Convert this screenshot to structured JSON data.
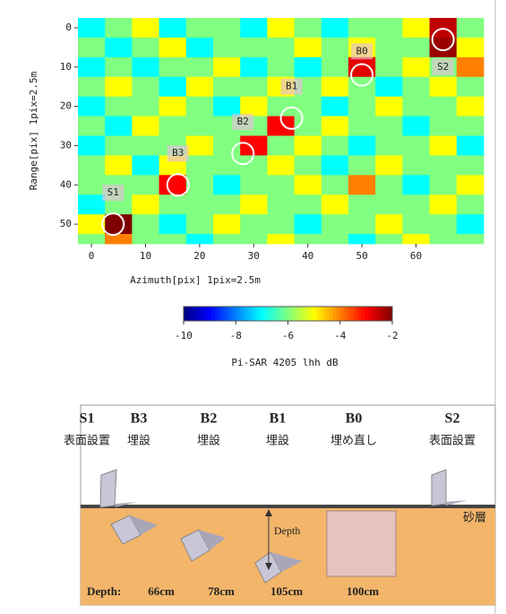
{
  "chart_data": {
    "type": "heatmap",
    "xlabel": "Azimuth[pix] 1pix=2.5m",
    "ylabel": "Range[pix] 1pix=2.5m",
    "xlim": [
      -2.5,
      72.5
    ],
    "ylim": [
      -2.5,
      55
    ],
    "xticks": [
      0,
      10,
      20,
      30,
      40,
      50,
      60
    ],
    "yticks": [
      0,
      10,
      20,
      30,
      40,
      50
    ],
    "y_inverted": true,
    "xbins": [
      -2.5,
      2.5,
      7.5,
      12.5,
      17.5,
      22.5,
      27.5,
      32.5,
      37.5,
      42.5,
      47.5,
      52.5,
      57.5,
      62.5,
      67.5,
      72.5
    ],
    "ybins": [
      -2.5,
      2.5,
      7.5,
      12.5,
      17.5,
      22.5,
      27.5,
      32.5,
      37.5,
      42.5,
      47.5,
      52.5,
      55
    ],
    "values": [
      [
        -7,
        -6,
        -5,
        -7,
        -6,
        -6,
        -7,
        -5,
        -6,
        -7,
        -6,
        -6,
        -5,
        -2.5,
        -6
      ],
      [
        -6,
        -7,
        -6,
        -5,
        -7,
        -6,
        -6,
        -6,
        -5,
        -6,
        -5,
        -6,
        -6,
        -2.2,
        -5
      ],
      [
        -7,
        -6,
        -7,
        -6,
        -6,
        -5,
        -7,
        -6,
        -7,
        -6,
        -2.8,
        -6,
        -5,
        -6,
        -4
      ],
      [
        -6,
        -5,
        -6,
        -7,
        -5,
        -6,
        -6,
        -5,
        -6,
        -5,
        -6,
        -7,
        -6,
        -5,
        -6
      ],
      [
        -7,
        -6,
        -6,
        -5,
        -6,
        -7,
        -5,
        -6,
        -6,
        -7,
        -6,
        -5,
        -6,
        -6,
        -5
      ],
      [
        -6,
        -7,
        -5,
        -6,
        -6,
        -6,
        -6,
        -3,
        -6,
        -5,
        -6,
        -6,
        -7,
        -6,
        -6
      ],
      [
        -7,
        -6,
        -6,
        -6,
        -5,
        -6,
        -3,
        -6,
        -5,
        -6,
        -7,
        -6,
        -6,
        -5,
        -7
      ],
      [
        -6,
        -5,
        -7,
        -5,
        -6,
        -6,
        -6,
        -5,
        -6,
        -7,
        -6,
        -5,
        -6,
        -6,
        -6
      ],
      [
        -6,
        -6,
        -6,
        -3,
        -6,
        -7,
        -6,
        -6,
        -5,
        -6,
        -4,
        -6,
        -7,
        -6,
        -5
      ],
      [
        -7,
        -6,
        -5,
        -6,
        -6,
        -6,
        -5,
        -6,
        -6,
        -5,
        -6,
        -6,
        -6,
        -5,
        -6
      ],
      [
        -5,
        -2,
        -6,
        -7,
        -6,
        -5,
        -6,
        -6,
        -7,
        -6,
        -6,
        -5,
        -6,
        -6,
        -7
      ],
      [
        -6,
        -4,
        -6,
        -6,
        -7,
        -6,
        -6,
        -5,
        -6,
        -6,
        -7,
        -6,
        -5,
        -6,
        -6
      ]
    ],
    "colormap": "jet",
    "clim": [
      -10,
      -2
    ],
    "cticks": [
      -10,
      -8,
      -6,
      -4,
      -2
    ],
    "clabel": "Pi-SAR 4205 lhh dB",
    "annotations": [
      {
        "label": "S1",
        "x": 4,
        "y": 50
      },
      {
        "label": "B3",
        "x": 16,
        "y": 40
      },
      {
        "label": "B2",
        "x": 28,
        "y": 32
      },
      {
        "label": "B1",
        "x": 37,
        "y": 23
      },
      {
        "label": "B0",
        "x": 50,
        "y": 12
      },
      {
        "label": "S2",
        "x": 65,
        "y": 3
      }
    ]
  },
  "diagram": {
    "targets": [
      {
        "name": "S1",
        "desc": "表面設置"
      },
      {
        "name": "B3",
        "desc": "埋設"
      },
      {
        "name": "B2",
        "desc": "埋設"
      },
      {
        "name": "B1",
        "desc": "埋設"
      },
      {
        "name": "B0",
        "desc": "埋め直し"
      },
      {
        "name": "S2",
        "desc": "表面設置"
      }
    ],
    "layer": "砂層",
    "depth_arrow": "Depth",
    "depth_title": "Depth:",
    "depths": [
      "66cm",
      "78cm",
      "105cm",
      "100cm"
    ]
  }
}
